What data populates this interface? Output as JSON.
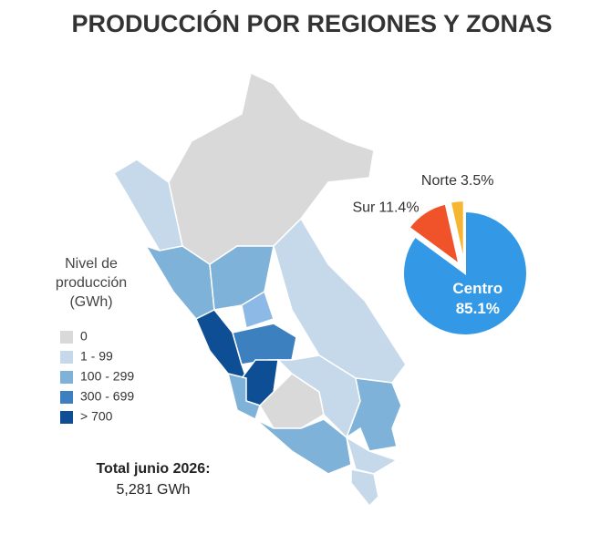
{
  "title": "PRODUCCIÓN POR REGIONES  Y ZONAS",
  "legend": {
    "title": [
      "Nivel de",
      "producción",
      "(GWh)"
    ],
    "items": [
      {
        "label": "0",
        "color": "#d9d9d9"
      },
      {
        "label": "1 - 99",
        "color": "#c5d9ea"
      },
      {
        "label": "100 - 299",
        "color": "#7fb2d9"
      },
      {
        "label": "300 - 699",
        "color": "#3d80bf"
      },
      {
        "label": "> 700",
        "color": "#0e4e95"
      }
    ]
  },
  "total": {
    "label": "Total junio 2026:",
    "value": "5,281 GWh"
  },
  "chart_data": {
    "type": "pie",
    "categories": [
      "Centro",
      "Sur",
      "Norte"
    ],
    "values": [
      85.1,
      11.4,
      3.5
    ],
    "value_labels": [
      "85.1%",
      "11.4%",
      "3.5%"
    ],
    "colors": [
      "#3399e6",
      "#f0522a",
      "#f5b731"
    ]
  }
}
